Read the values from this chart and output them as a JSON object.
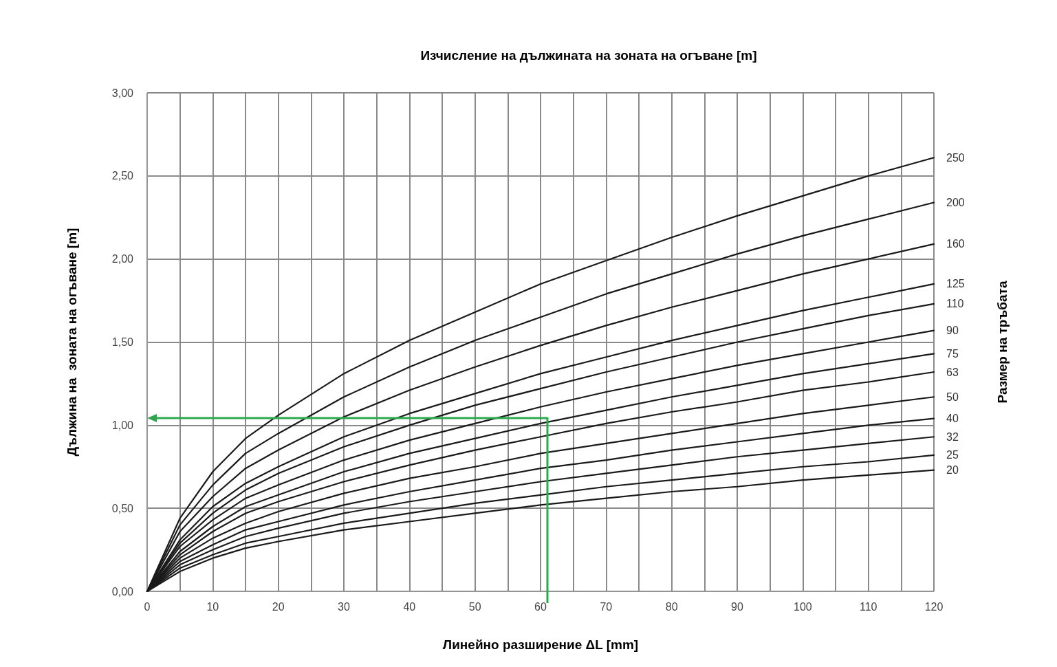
{
  "chart_data": {
    "type": "line",
    "title": "Изчисление на дължината на зоната на огъване [m]",
    "xlabel": "Линейно разширение ΔL [mm]",
    "ylabel": "Дължина на  зоната на огъване [m]",
    "y2label": "Размер на тръбата",
    "x": [
      0,
      5,
      10,
      15,
      20,
      30,
      40,
      50,
      60,
      70,
      80,
      90,
      100,
      110,
      120
    ],
    "series": [
      {
        "name": "250",
        "color": "#1a1a1a",
        "values": [
          0,
          0.44,
          0.72,
          0.92,
          1.06,
          1.31,
          1.51,
          1.68,
          1.85,
          1.99,
          2.13,
          2.26,
          2.38,
          2.5,
          2.61
        ]
      },
      {
        "name": "200",
        "color": "#1a1a1a",
        "values": [
          0,
          0.4,
          0.64,
          0.83,
          0.95,
          1.17,
          1.35,
          1.51,
          1.65,
          1.79,
          1.91,
          2.03,
          2.14,
          2.24,
          2.34
        ]
      },
      {
        "name": "160",
        "color": "#1a1a1a",
        "values": [
          0,
          0.36,
          0.57,
          0.74,
          0.85,
          1.05,
          1.21,
          1.35,
          1.48,
          1.6,
          1.71,
          1.81,
          1.91,
          2.0,
          2.09
        ]
      },
      {
        "name": "125",
        "color": "#1a1a1a",
        "values": [
          0,
          0.31,
          0.51,
          0.65,
          0.75,
          0.93,
          1.07,
          1.19,
          1.31,
          1.41,
          1.51,
          1.6,
          1.69,
          1.77,
          1.85
        ]
      },
      {
        "name": "110",
        "color": "#1a1a1a",
        "values": [
          0,
          0.29,
          0.47,
          0.61,
          0.71,
          0.87,
          1.0,
          1.12,
          1.22,
          1.32,
          1.41,
          1.5,
          1.58,
          1.66,
          1.73
        ]
      },
      {
        "name": "90",
        "color": "#1a1a1a",
        "values": [
          0,
          0.27,
          0.43,
          0.56,
          0.64,
          0.79,
          0.91,
          1.01,
          1.11,
          1.2,
          1.28,
          1.36,
          1.43,
          1.5,
          1.57
        ]
      },
      {
        "name": "75",
        "color": "#1a1a1a",
        "values": [
          0,
          0.24,
          0.39,
          0.51,
          0.58,
          0.72,
          0.83,
          0.92,
          1.01,
          1.09,
          1.17,
          1.24,
          1.31,
          1.37,
          1.43
        ]
      },
      {
        "name": "63",
        "color": "#1a1a1a",
        "values": [
          0,
          0.22,
          0.36,
          0.47,
          0.54,
          0.66,
          0.76,
          0.85,
          0.93,
          1.01,
          1.08,
          1.14,
          1.21,
          1.26,
          1.32
        ]
      },
      {
        "name": "50",
        "color": "#1a1a1a",
        "values": [
          0,
          0.2,
          0.32,
          0.41,
          0.48,
          0.59,
          0.68,
          0.75,
          0.83,
          0.89,
          0.95,
          1.01,
          1.07,
          1.12,
          1.17
        ]
      },
      {
        "name": "40",
        "color": "#1a1a1a",
        "values": [
          0,
          0.18,
          0.28,
          0.37,
          0.42,
          0.52,
          0.6,
          0.67,
          0.74,
          0.79,
          0.85,
          0.9,
          0.95,
          1.0,
          1.04
        ]
      },
      {
        "name": "32",
        "color": "#1a1a1a",
        "values": [
          0,
          0.16,
          0.25,
          0.33,
          0.38,
          0.47,
          0.54,
          0.6,
          0.66,
          0.71,
          0.76,
          0.81,
          0.85,
          0.89,
          0.93
        ]
      },
      {
        "name": "25",
        "color": "#1a1a1a",
        "values": [
          0,
          0.14,
          0.22,
          0.29,
          0.33,
          0.41,
          0.47,
          0.53,
          0.58,
          0.63,
          0.67,
          0.71,
          0.75,
          0.78,
          0.82
        ]
      },
      {
        "name": "20",
        "color": "#1a1a1a",
        "values": [
          0,
          0.12,
          0.2,
          0.26,
          0.3,
          0.37,
          0.42,
          0.47,
          0.52,
          0.56,
          0.6,
          0.63,
          0.67,
          0.7,
          0.73
        ]
      }
    ],
    "xlim": [
      0,
      120
    ],
    "xticks": [
      0,
      {
        "value": 5,
        "label": null
      },
      10,
      {
        "value": 15,
        "label": null
      },
      20,
      {
        "value": 25,
        "label": null
      },
      30,
      {
        "value": 35,
        "label": null
      },
      40,
      {
        "value": 45,
        "label": null
      },
      50,
      {
        "value": 55,
        "label": null
      },
      60,
      {
        "value": 65,
        "label": null
      },
      70,
      {
        "value": 75,
        "label": null
      },
      80,
      {
        "value": 85,
        "label": null
      },
      90,
      {
        "value": 95,
        "label": null
      },
      100,
      {
        "value": 105,
        "label": null
      },
      110,
      {
        "value": 115,
        "label": null
      },
      120
    ],
    "ylim": [
      0,
      3
    ],
    "yticks": [
      {
        "value": 0,
        "label": "0,00"
      },
      {
        "value": 0.5,
        "label": "0,50"
      },
      {
        "value": 1,
        "label": "1,00"
      },
      {
        "value": 1.5,
        "label": "1,50"
      },
      {
        "value": 2,
        "label": "2,00"
      },
      {
        "value": 2.5,
        "label": "2,50"
      },
      {
        "value": 3,
        "label": "3,00"
      }
    ],
    "grid": true,
    "marker": "none",
    "line_style": "solid",
    "legend": false
  }
}
